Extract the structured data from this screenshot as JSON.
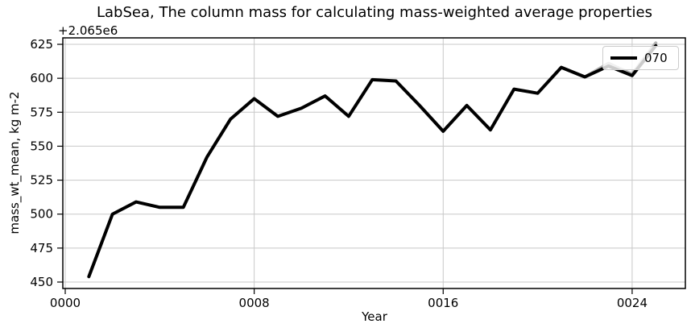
{
  "chart": {
    "title": "LabSea, The column mass for calculating mass-weighted average properties",
    "offset_text": "+2.065e6",
    "xlabel": "Year",
    "ylabel": "mass_wt_mean, kg m-2",
    "legend": {
      "label": "070"
    }
  },
  "colors": {
    "grid": "#c8c8c8",
    "spine": "#000000",
    "tick": "#000000",
    "main_line": "#000000",
    "ghost_line": "#b4b4b4",
    "legend_border": "#cccccc"
  },
  "chart_data": {
    "type": "line",
    "title": "LabSea, The column mass for calculating mass-weighted average properties",
    "xlabel": "Year",
    "ylabel": "mass_wt_mean, kg m-2",
    "y_offset": "+2.065e6",
    "grid": true,
    "legend_position": "upper right",
    "x_ticks": [
      "0000",
      "0008",
      "0016",
      "0024"
    ],
    "x_tick_years": [
      0,
      8,
      16,
      24
    ],
    "y_ticks": [
      450,
      475,
      500,
      525,
      550,
      575,
      600,
      625
    ],
    "ylim": [
      445,
      631
    ],
    "xlim": [
      -0.1,
      26.3
    ],
    "series": [
      {
        "name": "unlabeled-gray",
        "color": "#b4b4b4",
        "linewidth": 4,
        "x": [
          21,
          22,
          23,
          24,
          25
        ],
        "values": [
          608,
          601,
          611,
          603,
          626
        ]
      },
      {
        "name": "070",
        "color": "#000000",
        "linewidth": 4,
        "x": [
          1,
          2,
          3,
          4,
          5,
          6,
          7,
          8,
          9,
          10,
          11,
          12,
          13,
          14,
          15,
          16,
          17,
          18,
          19,
          20,
          21,
          22,
          23,
          24,
          25
        ],
        "values": [
          454,
          500,
          509,
          505,
          505,
          542,
          570,
          585,
          572,
          578,
          587,
          572,
          599,
          598,
          580,
          561,
          580,
          562,
          592,
          589,
          608,
          601,
          609,
          602,
          624
        ]
      }
    ]
  }
}
